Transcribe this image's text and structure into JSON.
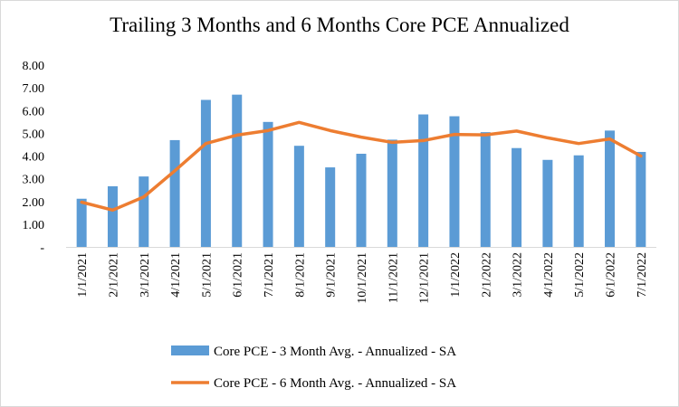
{
  "chart_data": {
    "type": "bar",
    "title": "Trailing 3 Months and 6 Months Core PCE Annualized",
    "xlabel": "",
    "ylabel": "",
    "ylim": [
      0,
      8
    ],
    "y_ticks": [
      "-",
      "1.00",
      "2.00",
      "3.00",
      "4.00",
      "5.00",
      "6.00",
      "7.00",
      "8.00"
    ],
    "grid": false,
    "legend_position": "bottom",
    "categories": [
      "1/1/2021",
      "2/1/2021",
      "3/1/2021",
      "4/1/2021",
      "5/1/2021",
      "6/1/2021",
      "7/1/2021",
      "8/1/2021",
      "9/1/2021",
      "10/1/2021",
      "11/1/2021",
      "12/1/2021",
      "1/1/2022",
      "2/1/2022",
      "3/1/2022",
      "4/1/2022",
      "5/1/2022",
      "6/1/2022",
      "7/1/2022"
    ],
    "series": [
      {
        "name": "Core PCE - 3 Month Avg. - Annualized - SA",
        "type": "bar",
        "color": "#5b9bd5",
        "values": [
          2.12,
          2.67,
          3.1,
          4.7,
          6.47,
          6.7,
          5.5,
          4.45,
          3.5,
          4.1,
          4.72,
          5.83,
          5.75,
          5.05,
          4.35,
          3.83,
          4.03,
          5.12,
          4.18
        ]
      },
      {
        "name": "Core PCE - 6 Month Avg. - Annualized - SA",
        "type": "line",
        "color": "#ed7d31",
        "values": [
          1.97,
          1.62,
          2.2,
          3.35,
          4.55,
          4.92,
          5.12,
          5.48,
          5.12,
          4.83,
          4.6,
          4.68,
          4.95,
          4.93,
          5.1,
          4.8,
          4.55,
          4.75,
          4.0
        ]
      }
    ]
  }
}
